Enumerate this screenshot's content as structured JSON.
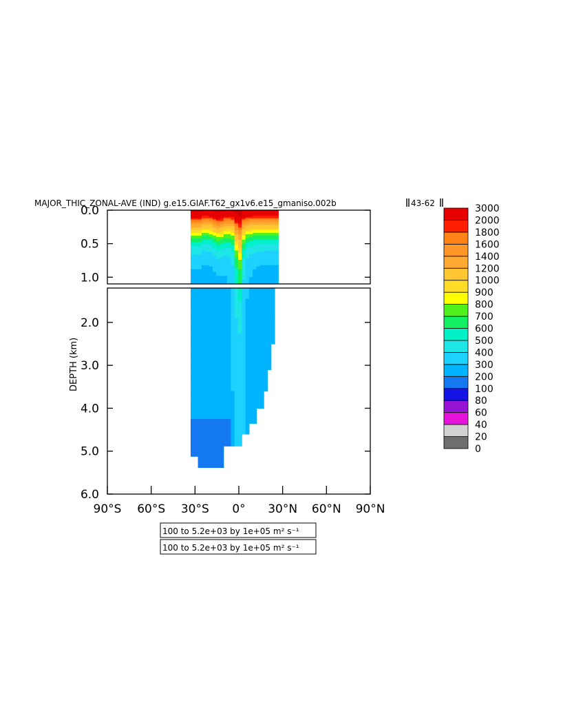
{
  "chart_data": {
    "type": "heatmap",
    "title": "MAJOR_THIC_ZONAL-AVE (IND) g.e15.GIAF.T62_gx1v6.e15_gmaniso.002b",
    "title_years": "43-62",
    "ylabel": "DEPTH (km)",
    "xlabel": "",
    "x_ticks": [
      "90°S",
      "60°S",
      "30°S",
      "0°",
      "30°N",
      "60°N",
      "90°N"
    ],
    "x_tick_values": [
      -90,
      -60,
      -30,
      0,
      30,
      60,
      90
    ],
    "xlim": [
      -90,
      90
    ],
    "upper_panel": {
      "ylim": [
        0.0,
        1.1
      ],
      "y_ticks": [
        "0.0",
        "0.5",
        "1.0"
      ],
      "y_tick_values": [
        0.0,
        0.5,
        1.0
      ]
    },
    "lower_panel": {
      "ylim": [
        1.2,
        6.0
      ],
      "y_ticks": [
        "2.0",
        "3.0",
        "4.0",
        "5.0",
        "6.0"
      ],
      "y_tick_values": [
        2.0,
        3.0,
        4.0,
        5.0,
        6.0
      ]
    },
    "data_lon_range": [
      -33,
      25
    ],
    "colorbar": {
      "levels": [
        "0",
        "20",
        "40",
        "60",
        "80",
        "100",
        "200",
        "300",
        "400",
        "500",
        "600",
        "700",
        "800",
        "900",
        "1000",
        "1200",
        "1400",
        "1600",
        "1800",
        "2000",
        "3000"
      ],
      "colors": [
        "#6e6e6e",
        "#d2d2d2",
        "#e614d8",
        "#9614d4",
        "#1414e6",
        "#1478f0",
        "#00b4ff",
        "#1ed2ff",
        "#1ee6e6",
        "#00f0c8",
        "#14f064",
        "#50f01e",
        "#ffff00",
        "#ffdc28",
        "#ffc832",
        "#ffaa32",
        "#ff9628",
        "#ff8214",
        "#ff1e00",
        "#e60000",
        "#c80000"
      ]
    },
    "contour_labels": [
      "100 to 5.2e+03 by 1e+05 m² s⁻¹",
      "100 to 5.2e+03 by 1e+05 m² s⁻¹"
    ]
  }
}
